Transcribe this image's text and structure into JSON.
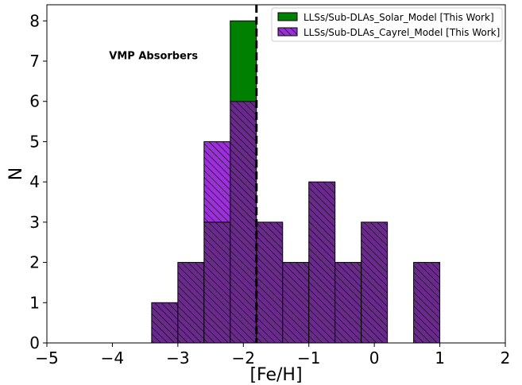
{
  "chart_data": {
    "type": "bar",
    "xlabel": "[Fe/H]",
    "ylabel": "N",
    "xlim": [
      -5,
      2
    ],
    "ylim": [
      0,
      8.4
    ],
    "xticks": [
      -5,
      -4,
      -3,
      -2,
      -1,
      0,
      1,
      2
    ],
    "xtick_labels": [
      "−5",
      "−4",
      "−3",
      "−2",
      "−1",
      "0",
      "1",
      "2"
    ],
    "yticks": [
      0,
      1,
      2,
      3,
      4,
      5,
      6,
      7,
      8
    ],
    "ytick_labels": [
      "0",
      "1",
      "2",
      "3",
      "4",
      "5",
      "6",
      "7",
      "8"
    ],
    "bin_edges": [
      -5.0,
      -4.6,
      -4.2,
      -3.8,
      -3.4,
      -3.0,
      -2.6,
      -2.2,
      -1.8,
      -1.4,
      -1.0,
      -0.6,
      -0.2,
      0.2,
      0.6,
      1.0,
      1.4,
      1.8
    ],
    "series": [
      {
        "name": "LLSs/Sub-DLAs_Solar_Model [This Work]",
        "color": "#008000",
        "hatch": false,
        "values": [
          0,
          0,
          0,
          0,
          1,
          2,
          3,
          8,
          3,
          2,
          4,
          2,
          3,
          0,
          2,
          0,
          0
        ]
      },
      {
        "name": "LLSs/Sub-DLAs_Cayrel_Model [This Work]",
        "color": "#9b30d9",
        "hatch": true,
        "values": [
          0,
          0,
          0,
          0,
          1,
          2,
          5,
          6,
          3,
          2,
          4,
          2,
          3,
          0,
          2,
          0,
          0
        ]
      }
    ],
    "overlap_color": "#6a2a8c",
    "vline": {
      "x": -1.8,
      "style": "dashed",
      "color": "#000000"
    },
    "annotation": {
      "text": "VMP Absorbers",
      "x": -4.05,
      "y": 7.05
    },
    "legend_placement": "top-right",
    "grid": false
  }
}
